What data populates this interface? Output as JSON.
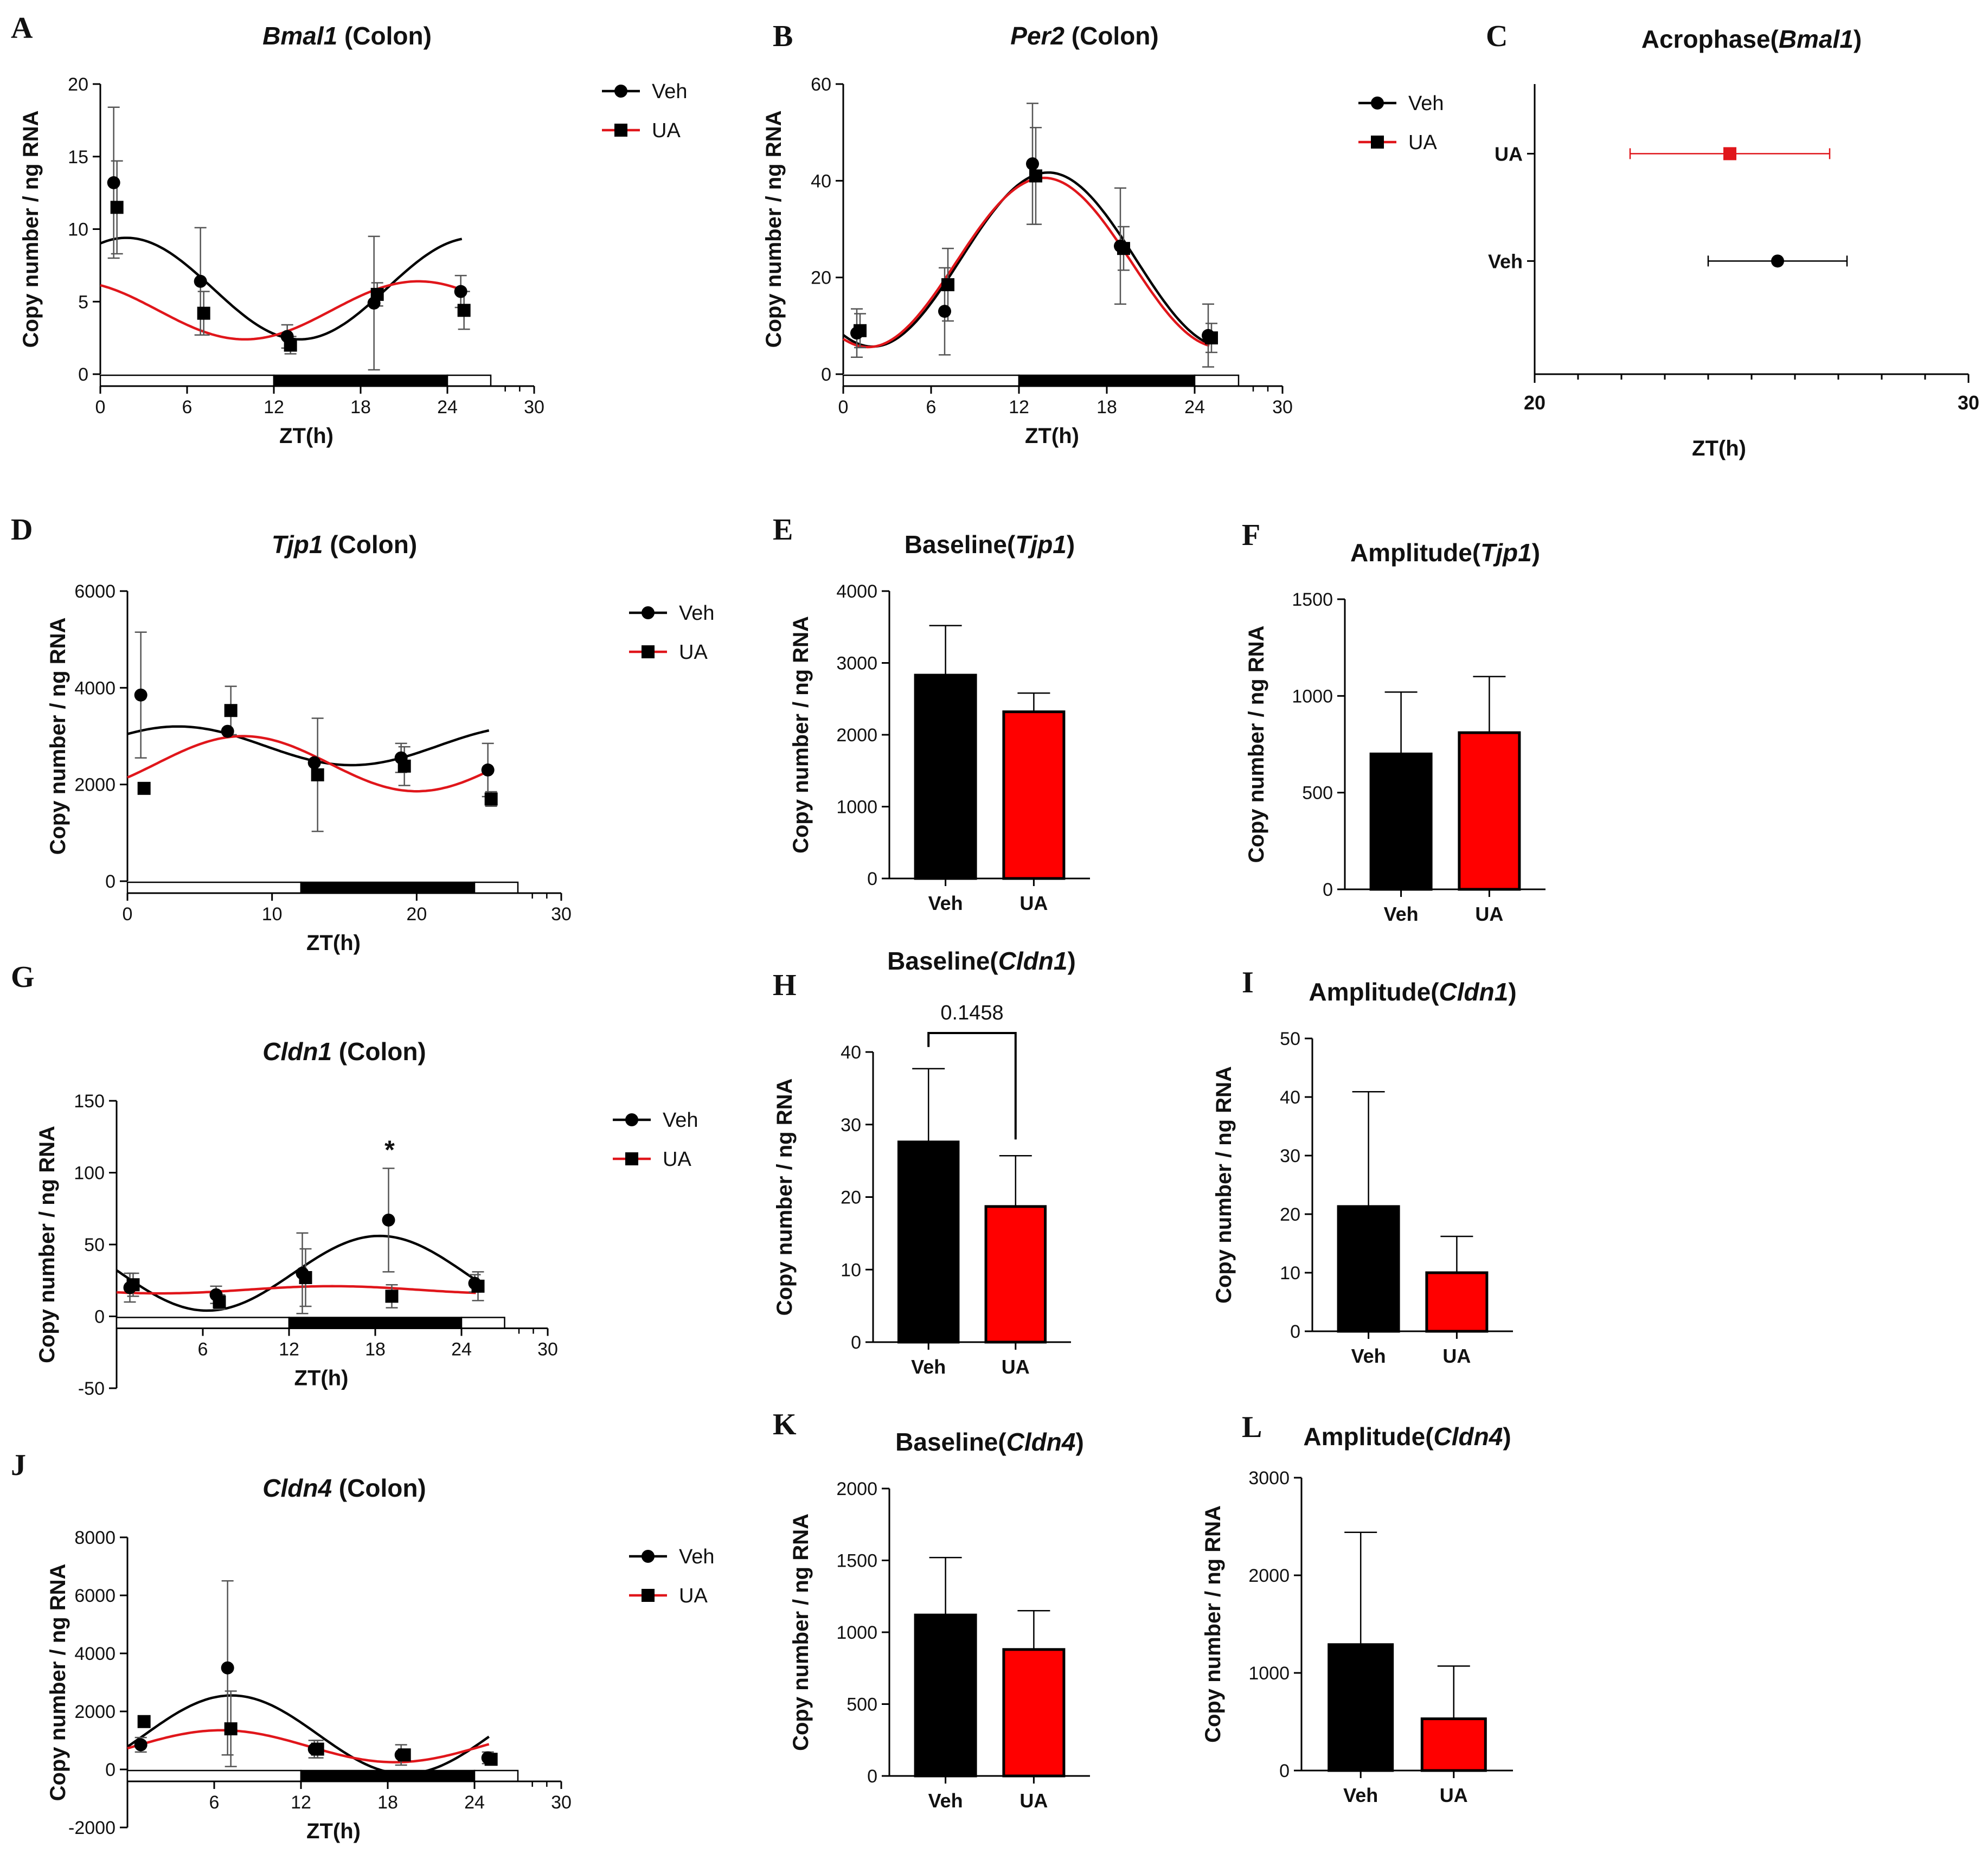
{
  "figure": {
    "panels": [
      "A",
      "B",
      "C",
      "D",
      "E",
      "F",
      "G",
      "H",
      "I",
      "J",
      "K",
      "L"
    ]
  },
  "chart_data": [
    {
      "id": "A",
      "type": "line",
      "title_gene": "Bmal1",
      "title_suffix": " (Colon)",
      "xlabel": "ZT(h)",
      "ylabel": "Copy number / ng RNA",
      "xlim": [
        0,
        30
      ],
      "ylim": [
        0,
        20
      ],
      "xticks": [
        0,
        6,
        12,
        18,
        24,
        30
      ],
      "yticks": [
        0,
        5,
        10,
        15,
        20
      ],
      "light_dark": [
        [
          0,
          12,
          "light"
        ],
        [
          12,
          24,
          "dark"
        ],
        [
          24,
          27,
          "light"
        ]
      ],
      "legend": [
        "Veh",
        "UA"
      ],
      "series": [
        {
          "name": "Veh",
          "marker": "circle",
          "color": "#000000",
          "x": [
            1,
            7,
            13,
            19,
            25
          ],
          "y": [
            13.2,
            6.4,
            2.6,
            4.9,
            5.7
          ],
          "err": [
            5.2,
            3.7,
            0.8,
            4.6,
            1.1
          ],
          "fit": {
            "mesor": 5.9,
            "amp": 3.5,
            "peak": 1.8
          }
        },
        {
          "name": "UA",
          "marker": "square",
          "color": "#e0161b",
          "x": [
            1,
            7,
            13,
            19,
            25
          ],
          "y": [
            11.5,
            4.2,
            2.0,
            5.5,
            4.4
          ],
          "err": [
            3.2,
            1.5,
            0.6,
            0.8,
            1.3
          ],
          "fit": {
            "mesor": 4.4,
            "amp": 2.0,
            "peak": 22.0
          }
        }
      ]
    },
    {
      "id": "B",
      "type": "line",
      "title_gene": "Per2",
      "title_suffix": " (Colon)",
      "xlabel": "ZT(h)",
      "ylabel": "Copy number / ng RNA",
      "xlim": [
        0,
        30
      ],
      "ylim": [
        0,
        60
      ],
      "xticks": [
        0,
        6,
        12,
        18,
        24,
        30
      ],
      "yticks": [
        0,
        20,
        40,
        60
      ],
      "light_dark": [
        [
          0,
          12,
          "light"
        ],
        [
          12,
          24,
          "dark"
        ],
        [
          24,
          27,
          "light"
        ]
      ],
      "legend": [
        "Veh",
        "UA"
      ],
      "series": [
        {
          "name": "Veh",
          "marker": "circle",
          "color": "#000000",
          "x": [
            1,
            7,
            13,
            19,
            25
          ],
          "y": [
            8.5,
            13.0,
            43.5,
            26.5,
            8.0
          ],
          "err": [
            5.0,
            9.0,
            12.5,
            12.0,
            6.5
          ],
          "fit": {
            "mesor": 23.7,
            "amp": 18.0,
            "peak": 14.0
          }
        },
        {
          "name": "UA",
          "marker": "square",
          "color": "#e0161b",
          "x": [
            1,
            7,
            13,
            19,
            25
          ],
          "y": [
            9.0,
            18.5,
            41.0,
            26.0,
            7.5
          ],
          "err": [
            3.5,
            7.5,
            10.0,
            4.5,
            3.0
          ],
          "fit": {
            "mesor": 23.1,
            "amp": 17.5,
            "peak": 13.7
          }
        }
      ]
    },
    {
      "id": "C",
      "type": "scatter",
      "title_prefix": "Acrophase(",
      "title_gene": "Bmal1",
      "title_suffix": ")",
      "xlabel": "ZT(h)",
      "xlim": [
        20,
        30
      ],
      "xticks": [
        20,
        30
      ],
      "categories": [
        "UA",
        "Veh"
      ],
      "points": [
        {
          "name": "UA",
          "x": 24.5,
          "low": 22.2,
          "high": 26.8,
          "color": "#e0161b",
          "marker": "square"
        },
        {
          "name": "Veh",
          "x": 25.6,
          "low": 24.0,
          "high": 27.2,
          "color": "#000000",
          "marker": "circle"
        }
      ]
    },
    {
      "id": "D",
      "type": "line",
      "title_gene": "Tjp1",
      "title_suffix": " (Colon)",
      "xlabel": "ZT(h)",
      "ylabel": "Copy number / ng RNA",
      "xlim": [
        0,
        30
      ],
      "ylim": [
        0,
        6000
      ],
      "xticks": [
        0,
        10,
        20,
        30
      ],
      "yticks": [
        0,
        2000,
        4000,
        6000
      ],
      "light_dark": [
        [
          0,
          12,
          "light"
        ],
        [
          12,
          24,
          "dark"
        ],
        [
          24,
          27,
          "light"
        ]
      ],
      "legend": [
        "Veh",
        "UA"
      ],
      "series": [
        {
          "name": "Veh",
          "marker": "circle",
          "color": "#000000",
          "x": [
            1,
            7,
            13,
            19,
            25
          ],
          "y": [
            3850,
            3100,
            2450,
            2550,
            2300
          ],
          "err": [
            1300,
            0,
            0,
            300,
            550
          ],
          "fit": {
            "mesor": 2800,
            "amp": 400,
            "peak": 3.5
          }
        },
        {
          "name": "UA",
          "marker": "square",
          "color": "#e0161b",
          "x": [
            1,
            7,
            13,
            19,
            25
          ],
          "y": [
            1920,
            3530,
            2200,
            2380,
            1700
          ],
          "err": [
            0,
            500,
            1170,
            400,
            150
          ],
          "fit": {
            "mesor": 2430,
            "amp": 570,
            "peak": 8.0
          }
        }
      ]
    },
    {
      "id": "E",
      "type": "bar",
      "title_prefix": "Baseline(",
      "title_gene": "Tjp1",
      "title_suffix": ")",
      "ylabel": "Copy number / ng RNA",
      "categories": [
        "Veh",
        "UA"
      ],
      "values": [
        2830,
        2320
      ],
      "err": [
        690,
        260
      ],
      "colors": [
        "#000000",
        "#ff0000"
      ],
      "ylim": [
        0,
        4000
      ],
      "yticks": [
        0,
        1000,
        2000,
        3000,
        4000
      ]
    },
    {
      "id": "F",
      "type": "bar",
      "title_prefix": "Amplitude(",
      "title_gene": "Tjp1",
      "title_suffix": ")",
      "ylabel": "Copy number / ng RNA",
      "categories": [
        "Veh",
        "UA"
      ],
      "values": [
        700,
        810
      ],
      "err": [
        320,
        290
      ],
      "colors": [
        "#000000",
        "#ff0000"
      ],
      "ylim": [
        0,
        1500
      ],
      "yticks": [
        0,
        500,
        1000,
        1500
      ]
    },
    {
      "id": "G",
      "type": "line",
      "title_gene": "Cldn1",
      "title_suffix": " (Colon)",
      "xlabel": "ZT(h)",
      "ylabel": "Copy number / ng RNA",
      "xlim": [
        0,
        30
      ],
      "ylim": [
        -50,
        150
      ],
      "xticks": [
        6,
        12,
        18,
        24,
        30
      ],
      "yticks": [
        -50,
        0,
        50,
        100,
        150
      ],
      "light_dark": [
        [
          0,
          12,
          "light"
        ],
        [
          12,
          24,
          "dark"
        ],
        [
          24,
          27,
          "light"
        ]
      ],
      "legend": [
        "Veh",
        "UA"
      ],
      "annotation": "*",
      "series": [
        {
          "name": "Veh",
          "marker": "circle",
          "color": "#000000",
          "x": [
            1,
            7,
            13,
            19,
            25
          ],
          "y": [
            20,
            15,
            30,
            67,
            23
          ],
          "err": [
            10,
            6,
            28,
            36,
            6
          ],
          "fit": {
            "mesor": 30,
            "amp": 26,
            "peak": 18.3
          }
        },
        {
          "name": "UA",
          "marker": "square",
          "color": "#e0161b",
          "x": [
            1,
            7,
            13,
            19,
            25
          ],
          "y": [
            22,
            10,
            27,
            14,
            21
          ],
          "err": [
            8,
            5,
            20,
            8,
            10
          ],
          "fit": {
            "mesor": 18.5,
            "amp": 2.5,
            "peak": 15
          }
        }
      ]
    },
    {
      "id": "H",
      "type": "bar",
      "title_prefix": "Baseline(",
      "title_gene": "Cldn1",
      "title_suffix": ")",
      "ylabel": "Copy number / ng RNA",
      "categories": [
        "Veh",
        "UA"
      ],
      "values": [
        27.6,
        18.7
      ],
      "err": [
        10.1,
        7.0
      ],
      "colors": [
        "#000000",
        "#ff0000"
      ],
      "ylim": [
        0,
        40
      ],
      "yticks": [
        0,
        10,
        20,
        30,
        40
      ],
      "annotation": "0.1458"
    },
    {
      "id": "I",
      "type": "bar",
      "title_prefix": "Amplitude(",
      "title_gene": "Cldn1",
      "title_suffix": ")",
      "ylabel": "Copy number / ng RNA",
      "categories": [
        "Veh",
        "UA"
      ],
      "values": [
        21.3,
        10.0
      ],
      "err": [
        19.6,
        6.2
      ],
      "colors": [
        "#000000",
        "#ff0000"
      ],
      "ylim": [
        0,
        50
      ],
      "yticks": [
        0,
        10,
        20,
        30,
        40,
        50
      ]
    },
    {
      "id": "J",
      "type": "line",
      "title_gene": "Cldn4",
      "title_suffix": " (Colon)",
      "xlabel": "ZT(h)",
      "ylabel": "Copy number / ng RNA",
      "xlim": [
        0,
        30
      ],
      "ylim": [
        -2000,
        8000
      ],
      "xticks": [
        6,
        12,
        18,
        24,
        30
      ],
      "yticks": [
        -2000,
        0,
        2000,
        4000,
        6000,
        8000
      ],
      "light_dark": [
        [
          0,
          12,
          "light"
        ],
        [
          12,
          24,
          "dark"
        ],
        [
          24,
          27,
          "light"
        ]
      ],
      "legend": [
        "Veh",
        "UA"
      ],
      "series": [
        {
          "name": "Veh",
          "marker": "circle",
          "color": "#000000",
          "x": [
            1,
            7,
            13,
            19,
            25
          ],
          "y": [
            850,
            3500,
            700,
            500,
            400
          ],
          "err": [
            250,
            3000,
            300,
            350,
            200
          ],
          "fit": {
            "mesor": 1200,
            "amp": 1350,
            "peak": 7.2
          }
        },
        {
          "name": "UA",
          "marker": "square",
          "color": "#e0161b",
          "x": [
            1,
            7,
            13,
            19,
            25
          ],
          "y": [
            1650,
            1400,
            700,
            500,
            350
          ],
          "err": [
            0,
            1300,
            300,
            200,
            150
          ],
          "fit": {
            "mesor": 800,
            "amp": 550,
            "peak": 6.5
          }
        }
      ]
    },
    {
      "id": "K",
      "type": "bar",
      "title_prefix": "Baseline(",
      "title_gene": "Cldn4",
      "title_suffix": ")",
      "ylabel": "Copy number / ng RNA",
      "categories": [
        "Veh",
        "UA"
      ],
      "values": [
        1120,
        880
      ],
      "err": [
        400,
        270
      ],
      "colors": [
        "#000000",
        "#ff0000"
      ],
      "ylim": [
        0,
        2000
      ],
      "yticks": [
        0,
        500,
        1000,
        1500,
        2000
      ]
    },
    {
      "id": "L",
      "type": "bar",
      "title_prefix": "Amplitude(",
      "title_gene": "Cldn4",
      "title_suffix": ")",
      "ylabel": "Copy number / ng RNA",
      "categories": [
        "Veh",
        "UA"
      ],
      "values": [
        1290,
        530
      ],
      "err": [
        1150,
        540
      ],
      "colors": [
        "#000000",
        "#ff0000"
      ],
      "ylim": [
        0,
        3000
      ],
      "yticks": [
        0,
        1000,
        2000,
        3000
      ]
    }
  ]
}
